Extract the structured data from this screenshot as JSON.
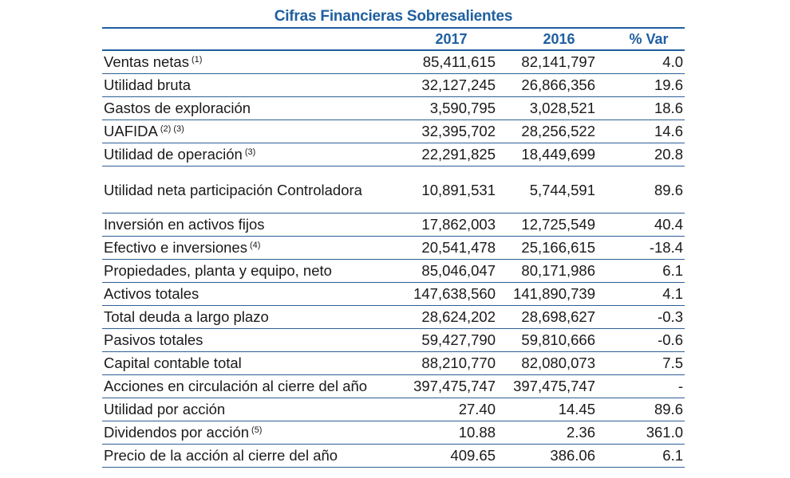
{
  "title": "Cifras Financieras Sobresalientes",
  "columns": {
    "y2017": "2017",
    "y2016": "2016",
    "var": "% Var"
  },
  "rows": [
    {
      "label": "Ventas netas",
      "note": "(1)",
      "v2017": "85,411,615",
      "v2016": "82,141,797",
      "var": "4.0"
    },
    {
      "label": "Utilidad bruta",
      "note": "",
      "v2017": "32,127,245",
      "v2016": "26,866,356",
      "var": "19.6"
    },
    {
      "label": "Gastos de exploración",
      "note": "",
      "v2017": "3,590,795",
      "v2016": "3,028,521",
      "var": "18.6"
    },
    {
      "label": "UAFIDA",
      "note": "(2) (3)",
      "v2017": "32,395,702",
      "v2016": "28,256,522",
      "var": "14.6"
    },
    {
      "label": "Utilidad de operación",
      "note": "(3)",
      "v2017": "22,291,825",
      "v2016": "18,449,699",
      "var": "20.8"
    },
    {
      "label": "Utilidad neta participación Controladora",
      "note": "",
      "v2017": "10,891,531",
      "v2016": "5,744,591",
      "var": "89.6",
      "tall": true
    },
    {
      "label": "Inversión en activos fijos",
      "note": "",
      "v2017": "17,862,003",
      "v2016": "12,725,549",
      "var": "40.4"
    },
    {
      "label": "Efectivo e inversiones",
      "note": "(4)",
      "v2017": "20,541,478",
      "v2016": "25,166,615",
      "var": "-18.4"
    },
    {
      "label": "Propiedades, planta y equipo, neto",
      "note": "",
      "v2017": "85,046,047",
      "v2016": "80,171,986",
      "var": "6.1"
    },
    {
      "label": "Activos totales",
      "note": "",
      "v2017": "147,638,560",
      "v2016": "141,890,739",
      "var": "4.1"
    },
    {
      "label": "Total deuda a largo plazo",
      "note": "",
      "v2017": "28,624,202",
      "v2016": "28,698,627",
      "var": "-0.3"
    },
    {
      "label": "Pasivos totales",
      "note": "",
      "v2017": "59,427,790",
      "v2016": "59,810,666",
      "var": "-0.6"
    },
    {
      "label": "Capital contable total",
      "note": "",
      "v2017": "88,210,770",
      "v2016": "82,080,073",
      "var": "7.5"
    },
    {
      "label": "Acciones en circulación al cierre del año",
      "note": "",
      "v2017": "397,475,747",
      "v2016": "397,475,747",
      "var": "-"
    },
    {
      "label": "Utilidad por acción",
      "note": "",
      "v2017": "27.40",
      "v2016": "14.45",
      "var": "89.6"
    },
    {
      "label": "Dividendos por acción",
      "note": "(5)",
      "v2017": "10.88",
      "v2016": "2.36",
      "var": "361.0"
    },
    {
      "label": "Precio de la acción al cierre del año",
      "note": "",
      "v2017": "409.65",
      "v2016": "386.06",
      "var": "6.1"
    }
  ]
}
